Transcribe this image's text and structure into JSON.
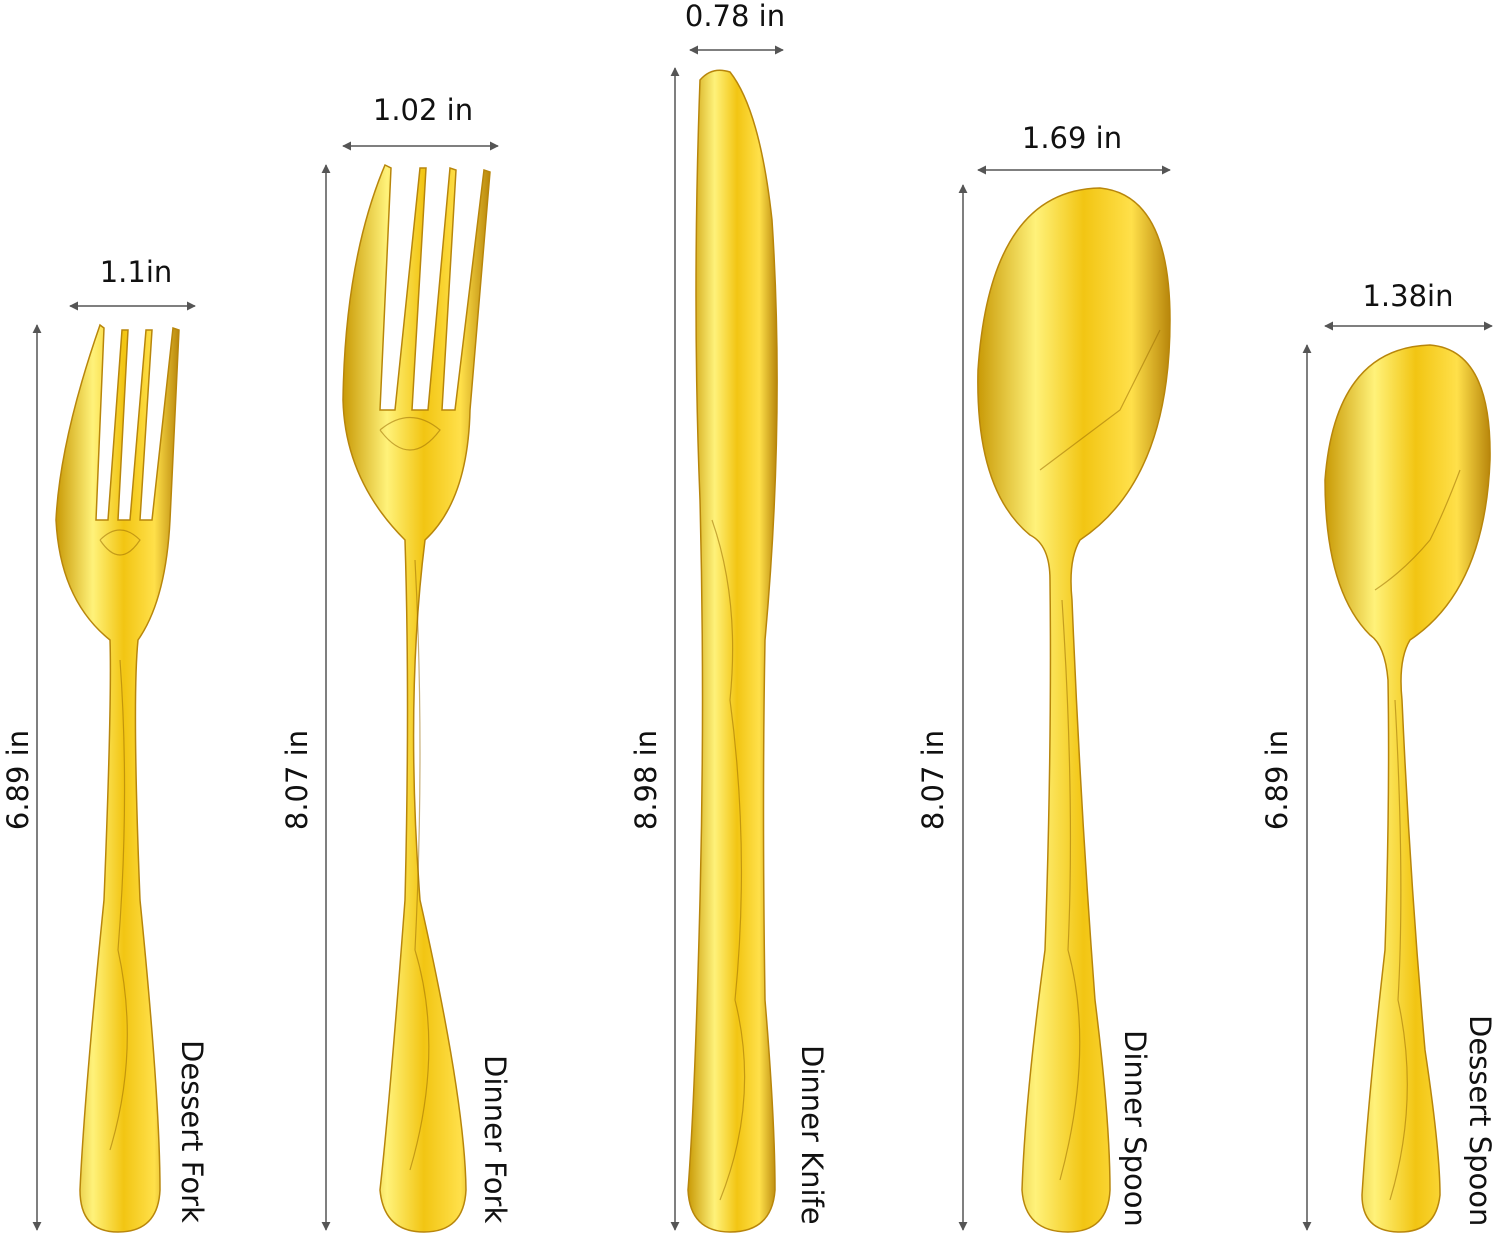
{
  "colors": {
    "background": "#ffffff",
    "gold_light": "#fff27a",
    "gold_mid": "#f2c513",
    "gold_dark": "#b8860b",
    "dimension_line": "#555555"
  },
  "items": [
    {
      "name": "Dessert Fork",
      "width_label": "1.1in",
      "length_label": "6.89 in"
    },
    {
      "name": "Dinner Fork",
      "width_label": "1.02 in",
      "length_label": "8.07 in"
    },
    {
      "name": "Dinner Knife",
      "width_label": "0.78 in",
      "length_label": "8.98 in"
    },
    {
      "name": "Dinner Spoon",
      "width_label": "1.69 in",
      "length_label": "8.07 in"
    },
    {
      "name": "Dessert Spoon",
      "width_label": "1.38in",
      "length_label": "6.89 in"
    }
  ]
}
